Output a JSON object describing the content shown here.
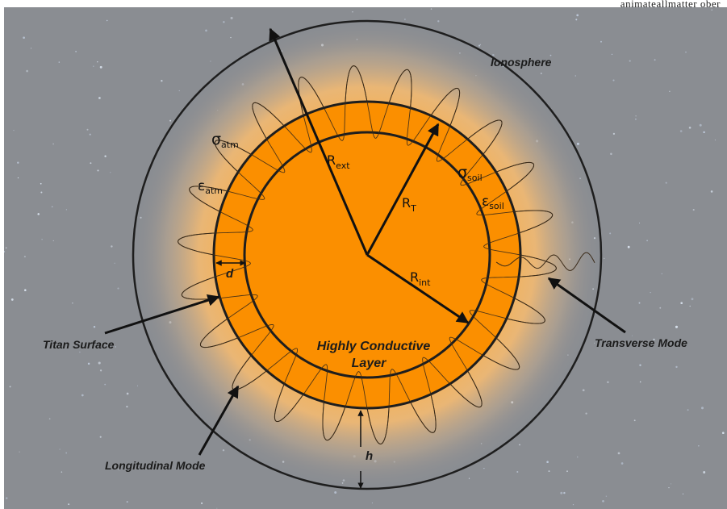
{
  "page": {
    "top_text": "animateallmatter ober"
  },
  "diagram": {
    "labels": {
      "ionosphere": "Ionosphere",
      "titan_surface": "Titan Surface",
      "transverse_mode": "Transverse Mode",
      "longitudinal_mode": "Longitudinal Mode",
      "layer_line1": "Highly Conductive",
      "layer_line2": "Layer",
      "h": "h",
      "d": "d"
    },
    "symbols": {
      "r_ext": {
        "base": "R",
        "sub": "ext"
      },
      "r_t": {
        "base": "R",
        "sub": "T"
      },
      "r_int": {
        "base": "R",
        "sub": "int"
      },
      "sigma_atm": {
        "base": "σ",
        "sub": "atm"
      },
      "eps_atm": {
        "base": "ε",
        "sub": "atm"
      },
      "sigma_soil": {
        "base": "σ",
        "sub": "soil"
      },
      "eps_soil": {
        "base": "ε",
        "sub": "soil"
      }
    },
    "colors": {
      "background": "#8a8d92",
      "glow": "#f7b04d",
      "orange": "#fb8f00",
      "outline": "#1e1e1e"
    }
  }
}
